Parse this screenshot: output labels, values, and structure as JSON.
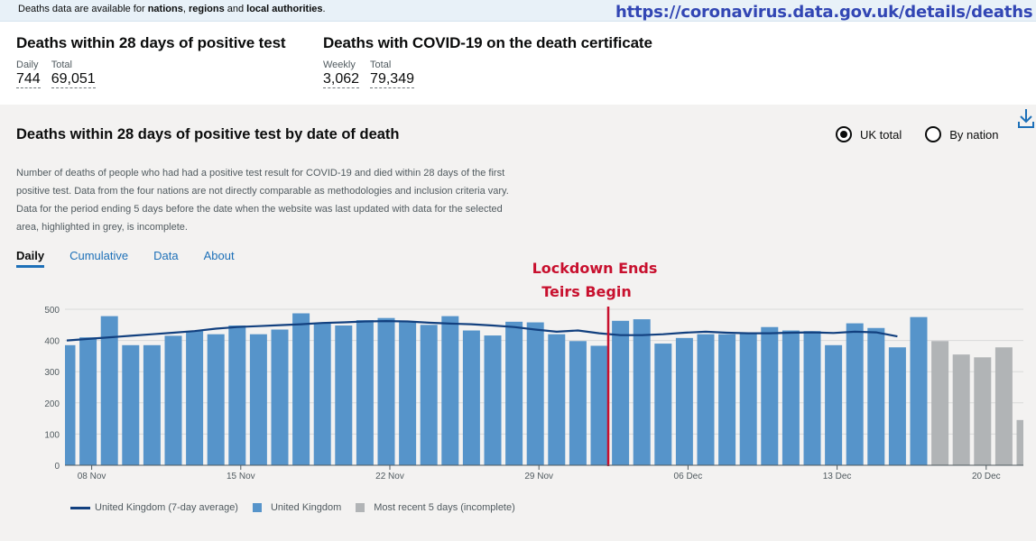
{
  "notice": {
    "prefix": "Deaths data are available for ",
    "b1": "nations",
    "sep1": ", ",
    "b2": "regions",
    "sep2": " and ",
    "b3": "local authorities",
    "suffix": "."
  },
  "url_overlay": "https://coronavirus.data.gov.uk/details/deaths",
  "summary": [
    {
      "title": "Deaths within 28 days of positive test",
      "metrics": [
        {
          "label": "Daily",
          "value": "744"
        },
        {
          "label": "Total",
          "value": "69,051"
        }
      ]
    },
    {
      "title": "Deaths with COVID-19 on the death certificate",
      "metrics": [
        {
          "label": "Weekly",
          "value": "3,062"
        },
        {
          "label": "Total",
          "value": "79,349"
        }
      ]
    }
  ],
  "panel": {
    "title": "Deaths within 28 days of positive test by date of death",
    "radios": [
      {
        "label": "UK total",
        "checked": true
      },
      {
        "label": "By nation",
        "checked": false
      }
    ],
    "description": "Number of deaths of people who had had a positive test result for COVID-19 and died within 28 days of the first positive test. Data from the four nations are not directly comparable as methodologies and inclusion criteria vary. Data for the period ending 5 days before the date when the website was last updated with data for the selected area, highlighted in grey, is incomplete.",
    "tabs": [
      "Daily",
      "Cumulative",
      "Data",
      "About"
    ],
    "active_tab": "Daily"
  },
  "annotation": {
    "line1": "Lockdown Ends",
    "line2": "Teirs Begin",
    "color": "#c8102e"
  },
  "legend": {
    "avg": "United Kingdom (7-day average)",
    "uk": "United Kingdom",
    "recent": "Most recent 5 days (incomplete)"
  },
  "colors": {
    "bar": "#5694ca",
    "incomplete": "#b1b4b6",
    "avg_line": "#12407f",
    "accent": "#1d70b8",
    "marker": "#c8102e"
  },
  "chart_data": {
    "type": "bar",
    "x": [
      "2020-11-07",
      "2020-11-08",
      "2020-11-09",
      "2020-11-10",
      "2020-11-11",
      "2020-11-12",
      "2020-11-13",
      "2020-11-14",
      "2020-11-15",
      "2020-11-16",
      "2020-11-17",
      "2020-11-18",
      "2020-11-19",
      "2020-11-20",
      "2020-11-21",
      "2020-11-22",
      "2020-11-23",
      "2020-11-24",
      "2020-11-25",
      "2020-11-26",
      "2020-11-27",
      "2020-11-28",
      "2020-11-29",
      "2020-11-30",
      "2020-12-01",
      "2020-12-02",
      "2020-12-03",
      "2020-12-04",
      "2020-12-05",
      "2020-12-06",
      "2020-12-07",
      "2020-12-08",
      "2020-12-09",
      "2020-12-10",
      "2020-12-11",
      "2020-12-12",
      "2020-12-13",
      "2020-12-14",
      "2020-12-15",
      "2020-12-16",
      "2020-12-17",
      "2020-12-18",
      "2020-12-19",
      "2020-12-20",
      "2020-12-21",
      "2020-12-22"
    ],
    "series": [
      {
        "name": "United Kingdom",
        "values": [
          385,
          410,
          478,
          385,
          385,
          415,
          430,
          420,
          448,
          420,
          435,
          487,
          455,
          448,
          465,
          472,
          458,
          450,
          478,
          432,
          416,
          460,
          458,
          420,
          398,
          383,
          463,
          468,
          390,
          408,
          420,
          420,
          425,
          443,
          432,
          430,
          385,
          455,
          440,
          378,
          475,
          398,
          355,
          346,
          378,
          145
        ]
      },
      {
        "name": "United Kingdom (7-day average)",
        "values": [
          400,
          405,
          410,
          415,
          420,
          425,
          430,
          438,
          443,
          446,
          449,
          452,
          456,
          458,
          461,
          462,
          461,
          457,
          454,
          452,
          448,
          443,
          435,
          428,
          432,
          423,
          417,
          417,
          420,
          425,
          428,
          425,
          423,
          423,
          425,
          426,
          424,
          428,
          426,
          413,
          null,
          null,
          null,
          null,
          null,
          null
        ]
      }
    ],
    "incomplete_from_index": 41,
    "y_ticks": [
      0,
      100,
      200,
      300,
      400,
      500
    ],
    "x_tick_labels": [
      "08 Nov",
      "15 Nov",
      "22 Nov",
      "29 Nov",
      "06 Dec",
      "13 Dec",
      "20 Dec"
    ],
    "x_tick_indices": [
      1,
      8,
      15,
      22,
      29,
      36,
      43
    ],
    "ylim": [
      0,
      525
    ],
    "marker_date": "2020-12-02",
    "grid": true
  }
}
